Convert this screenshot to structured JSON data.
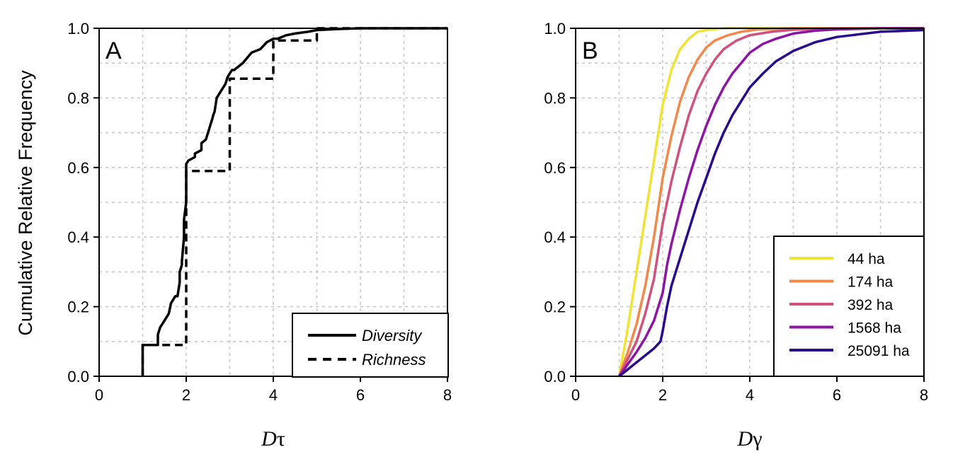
{
  "y_axis_label": "Cumulative Relative Frequency",
  "chart_data": [
    {
      "type": "line",
      "panel": "A",
      "xlabel": "D",
      "xlabel_greek": "τ",
      "xlim": [
        0,
        8
      ],
      "ylim": [
        0,
        1
      ],
      "x_ticks": [
        0,
        2,
        4,
        6,
        8
      ],
      "y_ticks": [
        0.0,
        0.2,
        0.4,
        0.6,
        0.8,
        1.0
      ],
      "y_tick_labels": [
        "0.0",
        "0.2",
        "0.4",
        "0.6",
        "0.8",
        "1.0"
      ],
      "grid": true,
      "legend_position": "bottom-right",
      "series": [
        {
          "name": "Diversity",
          "style": "solid",
          "color": "#000000",
          "x": [
            1.0,
            1.0,
            1.0,
            1.35,
            1.35,
            1.4,
            1.5,
            1.6,
            1.65,
            1.75,
            1.8,
            1.85,
            1.85,
            1.9,
            1.9,
            1.95,
            1.95,
            2.0,
            2.0,
            2.05,
            2.2,
            2.2,
            2.35,
            2.35,
            2.45,
            2.5,
            2.55,
            2.6,
            2.62,
            2.65,
            2.7,
            2.8,
            2.9,
            2.95,
            3.0,
            3.05,
            3.1,
            3.3,
            3.5,
            3.7,
            3.85,
            4.0,
            4.1,
            4.3,
            4.5,
            4.8,
            5.0,
            5.5,
            6.0,
            7.0,
            8.0
          ],
          "y": [
            0.0,
            0.09,
            0.09,
            0.09,
            0.12,
            0.14,
            0.16,
            0.18,
            0.21,
            0.23,
            0.23,
            0.27,
            0.3,
            0.32,
            0.33,
            0.4,
            0.45,
            0.5,
            0.61,
            0.62,
            0.63,
            0.64,
            0.65,
            0.67,
            0.68,
            0.7,
            0.72,
            0.74,
            0.75,
            0.76,
            0.8,
            0.82,
            0.84,
            0.86,
            0.87,
            0.88,
            0.88,
            0.9,
            0.93,
            0.94,
            0.96,
            0.97,
            0.97,
            0.98,
            0.985,
            0.99,
            0.995,
            0.998,
            1.0,
            1.0,
            1.0
          ]
        },
        {
          "name": "Richness",
          "style": "dashed",
          "color": "#000000",
          "x": [
            1.0,
            1.0,
            2.0,
            2.0,
            3.0,
            3.0,
            4.0,
            4.0,
            5.0,
            5.0,
            8.0
          ],
          "y": [
            0.0,
            0.09,
            0.09,
            0.59,
            0.59,
            0.855,
            0.855,
            0.965,
            0.965,
            1.0,
            1.0
          ]
        }
      ]
    },
    {
      "type": "line",
      "panel": "B",
      "xlabel": "D",
      "xlabel_greek": "γ",
      "xlim": [
        0,
        8
      ],
      "ylim": [
        0,
        1
      ],
      "x_ticks": [
        0,
        2,
        4,
        6,
        8
      ],
      "y_ticks": [
        0.0,
        0.2,
        0.4,
        0.6,
        0.8,
        1.0
      ],
      "y_tick_labels": [
        "0.0",
        "0.2",
        "0.4",
        "0.6",
        "0.8",
        "1.0"
      ],
      "grid": true,
      "legend_position": "bottom-right",
      "series": [
        {
          "name": "44 ha",
          "color": "#F0E334",
          "x": [
            1.0,
            1.2,
            1.4,
            1.6,
            1.8,
            2.0,
            2.2,
            2.4,
            2.6,
            2.8,
            3.0,
            3.4,
            3.8,
            4.5,
            6.0,
            8.0
          ],
          "y": [
            0.0,
            0.14,
            0.3,
            0.46,
            0.62,
            0.78,
            0.88,
            0.94,
            0.97,
            0.99,
            0.995,
            1.0,
            1.0,
            1.0,
            1.0,
            1.0
          ]
        },
        {
          "name": "174 ha",
          "color": "#F2894A",
          "x": [
            1.0,
            1.2,
            1.4,
            1.6,
            1.8,
            2.0,
            2.2,
            2.4,
            2.6,
            2.8,
            3.0,
            3.2,
            3.5,
            3.8,
            4.2,
            5.0,
            6.0,
            8.0
          ],
          "y": [
            0.0,
            0.07,
            0.15,
            0.26,
            0.4,
            0.57,
            0.69,
            0.79,
            0.86,
            0.91,
            0.945,
            0.965,
            0.98,
            0.99,
            0.997,
            1.0,
            1.0,
            1.0
          ]
        },
        {
          "name": "392 ha",
          "color": "#D0517B",
          "x": [
            1.0,
            1.2,
            1.4,
            1.6,
            1.8,
            2.0,
            2.2,
            2.4,
            2.6,
            2.8,
            3.0,
            3.2,
            3.4,
            3.7,
            4.0,
            4.5,
            5.0,
            6.0,
            8.0
          ],
          "y": [
            0.0,
            0.05,
            0.1,
            0.18,
            0.28,
            0.44,
            0.56,
            0.66,
            0.75,
            0.82,
            0.87,
            0.91,
            0.94,
            0.965,
            0.98,
            0.99,
            0.996,
            1.0,
            1.0
          ]
        },
        {
          "name": "1568 ha",
          "color": "#8E14A7",
          "x": [
            1.0,
            1.2,
            1.4,
            1.6,
            1.8,
            2.0,
            2.1,
            2.2,
            2.4,
            2.6,
            2.8,
            3.0,
            3.2,
            3.4,
            3.6,
            3.8,
            4.0,
            4.3,
            4.6,
            5.0,
            5.5,
            6.0,
            7.0,
            8.0
          ],
          "y": [
            0.0,
            0.035,
            0.07,
            0.11,
            0.16,
            0.24,
            0.32,
            0.38,
            0.48,
            0.57,
            0.65,
            0.72,
            0.78,
            0.83,
            0.87,
            0.9,
            0.93,
            0.955,
            0.97,
            0.985,
            0.993,
            0.997,
            1.0,
            1.0
          ]
        },
        {
          "name": "25091 ha",
          "color": "#2A0A8F",
          "x": [
            1.0,
            1.2,
            1.4,
            1.6,
            1.8,
            1.95,
            2.0,
            2.1,
            2.2,
            2.4,
            2.6,
            2.8,
            3.0,
            3.2,
            3.4,
            3.6,
            3.8,
            4.0,
            4.3,
            4.6,
            5.0,
            5.5,
            6.0,
            7.0,
            8.0
          ],
          "y": [
            0.0,
            0.02,
            0.04,
            0.06,
            0.08,
            0.1,
            0.13,
            0.2,
            0.26,
            0.34,
            0.42,
            0.5,
            0.57,
            0.64,
            0.7,
            0.75,
            0.79,
            0.83,
            0.87,
            0.905,
            0.935,
            0.96,
            0.975,
            0.99,
            0.995
          ]
        }
      ]
    }
  ]
}
